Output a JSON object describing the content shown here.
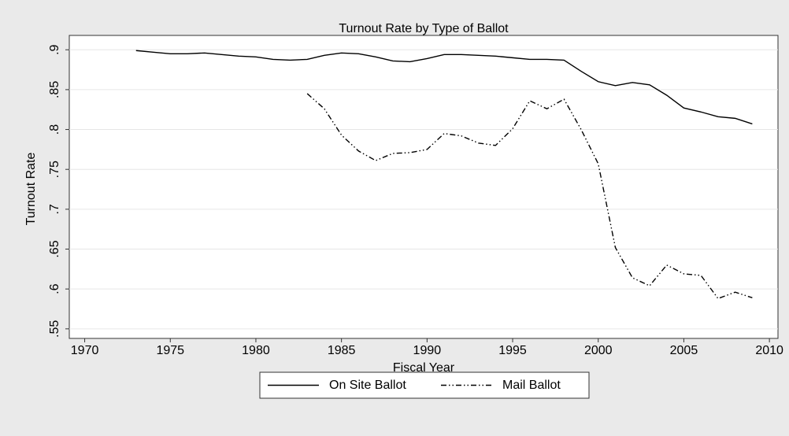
{
  "chart_data": {
    "type": "line",
    "title": "Turnout Rate by Type of Ballot",
    "x_label": "Fiscal Year",
    "y_label": "Turnout Rate",
    "x": [
      1973,
      1974,
      1975,
      1976,
      1977,
      1978,
      1979,
      1980,
      1981,
      1982,
      1983,
      1984,
      1985,
      1986,
      1987,
      1988,
      1989,
      1990,
      1991,
      1992,
      1993,
      1994,
      1995,
      1996,
      1997,
      1998,
      1999,
      2000,
      2001,
      2002,
      2003,
      2004,
      2005,
      2006,
      2007,
      2008,
      2009
    ],
    "series": [
      {
        "name": "On Site Ballot",
        "color": "#000000",
        "dash": "solid",
        "values": [
          0.899,
          0.897,
          0.895,
          0.895,
          0.896,
          0.894,
          0.892,
          0.891,
          0.888,
          0.887,
          0.888,
          0.893,
          0.896,
          0.895,
          0.891,
          0.886,
          0.885,
          0.889,
          0.894,
          0.894,
          0.893,
          0.892,
          0.89,
          0.888,
          0.888,
          0.887,
          0.873,
          0.86,
          0.855,
          0.859,
          0.856,
          0.843,
          0.827,
          0.822,
          0.816,
          0.814,
          0.807
        ]
      },
      {
        "name": "Mail Ballot",
        "color": "#000000",
        "dash": "dash-dot-dot",
        "values": [
          null,
          null,
          null,
          null,
          null,
          null,
          null,
          null,
          null,
          null,
          0.845,
          0.826,
          0.793,
          0.773,
          0.761,
          0.77,
          0.771,
          0.775,
          0.795,
          0.792,
          0.783,
          0.78,
          0.801,
          0.836,
          0.826,
          0.838,
          0.8,
          0.757,
          0.652,
          0.614,
          0.604,
          0.63,
          0.619,
          0.617,
          0.588,
          0.596,
          0.589
        ]
      }
    ],
    "xlim": [
      1969.1,
      2010.5
    ],
    "ylim": [
      0.538,
      0.918
    ],
    "xticks": [
      1970,
      1975,
      1980,
      1985,
      1990,
      1995,
      2000,
      2005,
      2010
    ],
    "yticks": [
      {
        "value": 0.55,
        "label": ".55"
      },
      {
        "value": 0.6,
        "label": ".6"
      },
      {
        "value": 0.65,
        "label": ".65"
      },
      {
        "value": 0.7,
        "label": ".7"
      },
      {
        "value": 0.75,
        "label": ".75"
      },
      {
        "value": 0.8,
        "label": ".8"
      },
      {
        "value": 0.85,
        "label": ".85"
      },
      {
        "value": 0.9,
        "label": ".9"
      }
    ],
    "grid": true,
    "legend": "bottom"
  }
}
